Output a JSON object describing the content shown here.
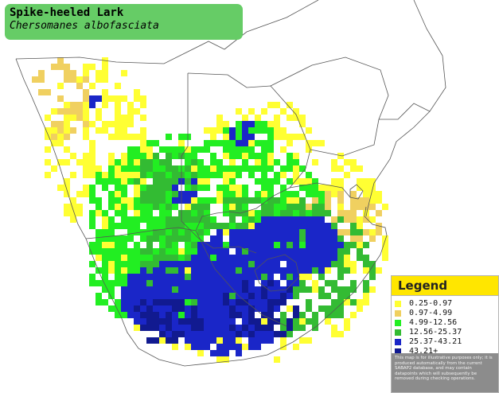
{
  "map": {
    "title": "Spike-heeled Lark",
    "subtitle": "Chersomanes albofasciata"
  },
  "legend": {
    "title": "Legend",
    "items": [
      {
        "label": "0.25-0.97",
        "color": "#ffff33"
      },
      {
        "label": "0.97-4.99",
        "color": "#f0d060"
      },
      {
        "label": "4.99-12.56",
        "color": "#22ee22"
      },
      {
        "label": "12.56-25.37",
        "color": "#33bb33"
      },
      {
        "label": "25.37-43.21",
        "color": "#1a26c8"
      },
      {
        "label": "43.21+",
        "color": "#111a90"
      }
    ],
    "note": "This map is for illustrative purposes only; it is produced automatically from the current SABAP2 database, and may contain datapoints which will subsequently be removed during checking operations."
  },
  "colors": {
    "background": "#ffffff",
    "title_box": "#66cc66",
    "legend_header": "#ffe600",
    "border": "#555555"
  }
}
